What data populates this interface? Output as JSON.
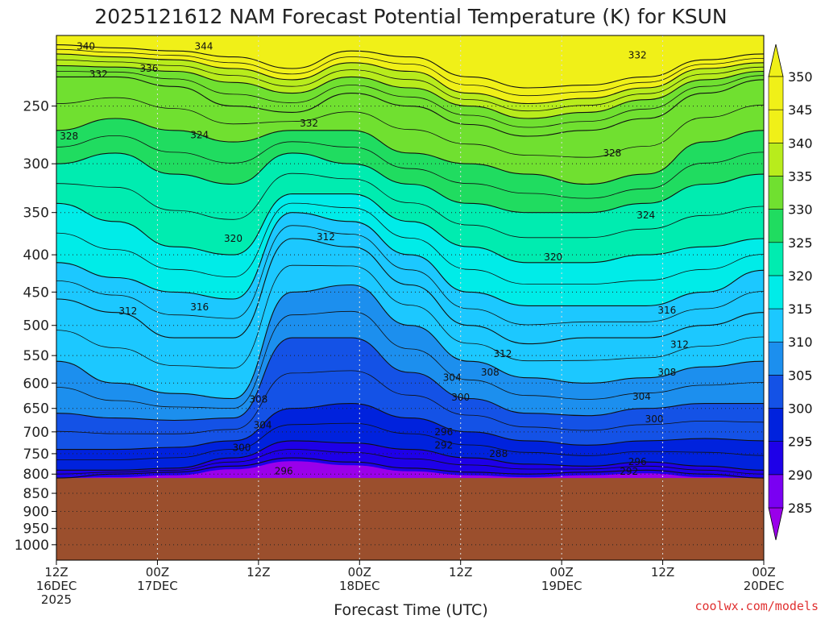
{
  "chart_data": {
    "type": "heatmap",
    "title": "2025121612 NAM Forecast Potential Temperature (K) for KSUN",
    "xlabel": "Forecast Time (UTC)",
    "ylabel": "",
    "credit": "coolwx.com/models",
    "y_axis": {
      "scale": "log-pressure",
      "range": [
        200,
        1050
      ],
      "ticks": [
        250,
        300,
        350,
        400,
        450,
        500,
        550,
        600,
        650,
        700,
        750,
        800,
        850,
        900,
        950,
        1000
      ]
    },
    "x_axis": {
      "range": [
        "2025-12-16 12Z",
        "2025-12-20 00Z"
      ],
      "ticks": [
        {
          "hour": 0,
          "lines": [
            "12Z",
            "16DEC",
            "2025"
          ]
        },
        {
          "hour": 12,
          "lines": [
            "00Z",
            "17DEC"
          ]
        },
        {
          "hour": 24,
          "lines": [
            "12Z"
          ]
        },
        {
          "hour": 36,
          "lines": [
            "00Z",
            "18DEC"
          ]
        },
        {
          "hour": 48,
          "lines": [
            "12Z"
          ]
        },
        {
          "hour": 60,
          "lines": [
            "00Z",
            "19DEC"
          ]
        },
        {
          "hour": 72,
          "lines": [
            "12Z"
          ]
        },
        {
          "hour": 84,
          "lines": [
            "00Z",
            "20DEC"
          ]
        }
      ]
    },
    "colorbar": {
      "levels": [
        285,
        290,
        295,
        300,
        305,
        310,
        315,
        320,
        325,
        330,
        335,
        340,
        345,
        350
      ],
      "colors": [
        "#9a00ea",
        "#7a00f2",
        "#1e00e8",
        "#0022dd",
        "#1452e6",
        "#1c8fee",
        "#1cc8ff",
        "#00ece8",
        "#00ecb0",
        "#20dc60",
        "#70e030",
        "#b8ec1c",
        "#f0f018"
      ]
    },
    "ground": {
      "pressure": 810,
      "color": "#9b4f2d"
    },
    "contour_lines": [
      {
        "value": 292,
        "pressure": [
          810,
          800,
          795,
          780,
          760,
          770,
          785,
          795,
          800,
          795,
          790,
          800,
          810
        ]
      },
      {
        "value": 296,
        "pressure": [
          790,
          790,
          785,
          760,
          720,
          725,
          740,
          760,
          775,
          780,
          770,
          780,
          790
        ]
      },
      {
        "value": 300,
        "pressure": [
          740,
          740,
          735,
          720,
          650,
          640,
          670,
          700,
          720,
          730,
          720,
          715,
          720
        ]
      },
      {
        "value": 304,
        "pressure": [
          660,
          670,
          675,
          670,
          520,
          520,
          580,
          630,
          660,
          665,
          650,
          640,
          640
        ]
      },
      {
        "value": 308,
        "pressure": [
          560,
          600,
          620,
          630,
          450,
          440,
          500,
          560,
          590,
          600,
          590,
          570,
          560
        ]
      },
      {
        "value": 312,
        "pressure": [
          460,
          480,
          520,
          520,
          380,
          390,
          440,
          500,
          530,
          520,
          520,
          500,
          480
        ]
      },
      {
        "value": 316,
        "pressure": [
          410,
          430,
          450,
          460,
          350,
          360,
          400,
          450,
          470,
          470,
          470,
          450,
          420
        ]
      },
      {
        "value": 320,
        "pressure": [
          340,
          360,
          390,
          400,
          330,
          330,
          360,
          390,
          410,
          410,
          400,
          390,
          380
        ]
      },
      {
        "value": 324,
        "pressure": [
          300,
          290,
          310,
          320,
          290,
          300,
          320,
          340,
          350,
          350,
          340,
          320,
          310
        ]
      },
      {
        "value": 328,
        "pressure": [
          270,
          260,
          270,
          280,
          270,
          270,
          290,
          300,
          310,
          320,
          310,
          280,
          270
        ]
      },
      {
        "value": 332,
        "pressure": [
          228,
          228,
          235,
          250,
          255,
          240,
          250,
          265,
          275,
          270,
          260,
          240,
          230
        ]
      },
      {
        "value": 336,
        "pressure": [
          220,
          221,
          224,
          232,
          240,
          228,
          236,
          250,
          260,
          255,
          245,
          230,
          224
        ]
      },
      {
        "value": 340,
        "pressure": [
          212,
          214,
          216,
          222,
          230,
          218,
          224,
          240,
          248,
          244,
          236,
          222,
          218
        ]
      },
      {
        "value": 344,
        "pressure": [
          206,
          208,
          210,
          214,
          222,
          210,
          214,
          228,
          236,
          234,
          228,
          216,
          212
        ]
      }
    ],
    "contour_line_hours": [
      0,
      7,
      14,
      21,
      28,
      35,
      42,
      49,
      56,
      63,
      70,
      77,
      84
    ],
    "contour_labels": [
      {
        "text": "340",
        "hour": 3.5,
        "pressure": 207
      },
      {
        "text": "344",
        "hour": 17.5,
        "pressure": 207
      },
      {
        "text": "332",
        "hour": 69,
        "pressure": 213
      },
      {
        "text": "332",
        "hour": 5,
        "pressure": 226
      },
      {
        "text": "336",
        "hour": 11,
        "pressure": 222
      },
      {
        "text": "332",
        "hour": 30,
        "pressure": 264
      },
      {
        "text": "328",
        "hour": 1.5,
        "pressure": 275
      },
      {
        "text": "324",
        "hour": 17,
        "pressure": 274
      },
      {
        "text": "328",
        "hour": 66,
        "pressure": 290
      },
      {
        "text": "324",
        "hour": 70,
        "pressure": 353
      },
      {
        "text": "320",
        "hour": 21,
        "pressure": 380
      },
      {
        "text": "312",
        "hour": 32,
        "pressure": 378
      },
      {
        "text": "320",
        "hour": 59,
        "pressure": 403
      },
      {
        "text": "312",
        "hour": 8.5,
        "pressure": 478
      },
      {
        "text": "316",
        "hour": 17,
        "pressure": 472
      },
      {
        "text": "316",
        "hour": 72.5,
        "pressure": 477
      },
      {
        "text": "312",
        "hour": 74,
        "pressure": 531
      },
      {
        "text": "312",
        "hour": 53,
        "pressure": 547
      },
      {
        "text": "308",
        "hour": 51.5,
        "pressure": 580
      },
      {
        "text": "304",
        "hour": 47,
        "pressure": 590
      },
      {
        "text": "308",
        "hour": 72.5,
        "pressure": 580
      },
      {
        "text": "304",
        "hour": 69.5,
        "pressure": 626
      },
      {
        "text": "300",
        "hour": 48,
        "pressure": 628
      },
      {
        "text": "308",
        "hour": 24,
        "pressure": 632
      },
      {
        "text": "300",
        "hour": 71,
        "pressure": 672
      },
      {
        "text": "304",
        "hour": 24.5,
        "pressure": 685
      },
      {
        "text": "296",
        "hour": 46,
        "pressure": 700
      },
      {
        "text": "300",
        "hour": 22,
        "pressure": 736
      },
      {
        "text": "292",
        "hour": 46,
        "pressure": 730
      },
      {
        "text": "288",
        "hour": 52.5,
        "pressure": 750
      },
      {
        "text": "296",
        "hour": 69,
        "pressure": 770
      },
      {
        "text": "296",
        "hour": 27,
        "pressure": 792
      },
      {
        "text": "292",
        "hour": 68,
        "pressure": 793
      }
    ]
  }
}
